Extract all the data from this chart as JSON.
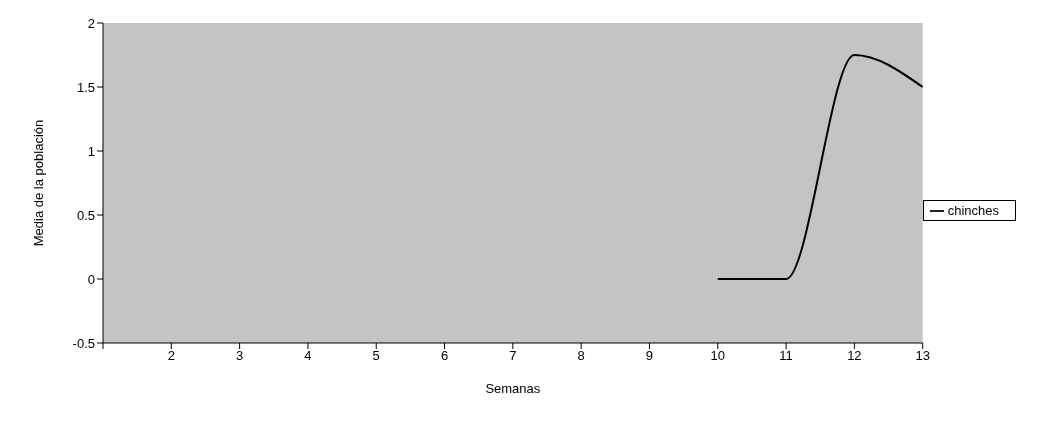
{
  "chart_data": {
    "type": "line",
    "xlabel": "Semanas",
    "ylabel": "Media de la población",
    "categories": [
      null,
      "2",
      "3",
      "4",
      "5",
      "6",
      "7",
      "8",
      "9",
      "10",
      "11",
      "12",
      "13"
    ],
    "series": [
      {
        "name": "chinches",
        "color": "#000000",
        "values": [
          null,
          null,
          null,
          null,
          null,
          null,
          null,
          null,
          null,
          0,
          0,
          1.75,
          1.5
        ]
      }
    ],
    "ylim": [
      -0.5,
      2
    ],
    "yticks": [
      -0.5,
      0,
      0.5,
      1,
      1.5,
      2
    ],
    "grid": false,
    "legend": "right",
    "marker": "none",
    "line_style": "solid"
  }
}
